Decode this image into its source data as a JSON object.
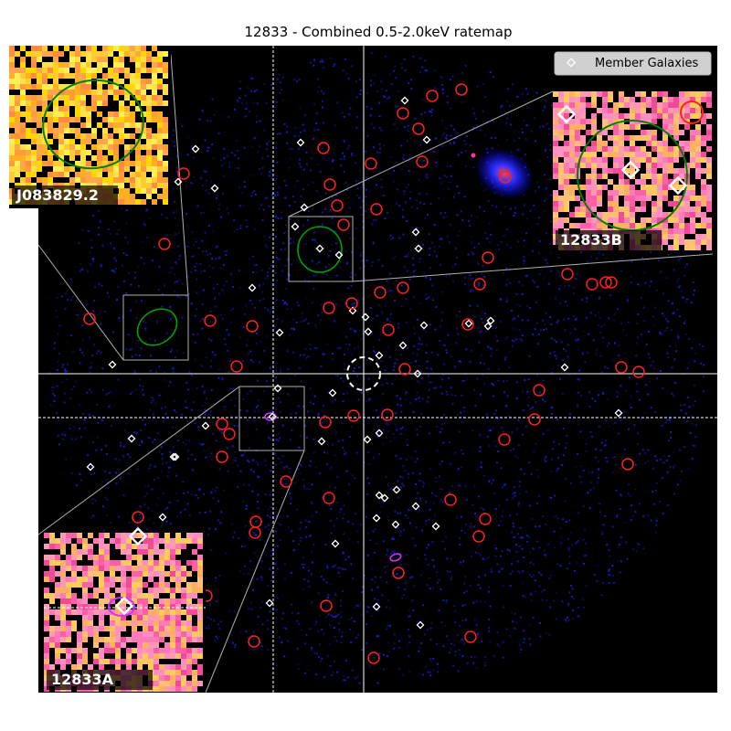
{
  "chart_data": {
    "type": "scatter",
    "title": "12833 - Combined 0.5-2.0keV ratemap",
    "xlabel": "",
    "ylabel": "",
    "grid": false,
    "legend": {
      "placement": "top-right",
      "entries": [
        "Member Galaxies"
      ]
    },
    "colors": {
      "background": "#000000",
      "photons": "#2222ff",
      "point_source": "#ff2020",
      "member_galaxy": "#ffffff",
      "inset_region": "#00a000",
      "extended_source": "#ff33ff",
      "leader_line": "#bbbbbb"
    },
    "series": [
      {
        "name": "Member Galaxies",
        "marker": "diamond",
        "points": [
          [
            443,
            110
          ],
          [
            214,
            163
          ],
          [
            329,
            156
          ],
          [
            467,
            153
          ],
          [
            195,
            199
          ],
          [
            235,
            206
          ],
          [
            333,
            227
          ],
          [
            323,
            248
          ],
          [
            455,
            254
          ],
          [
            458,
            272
          ],
          [
            350,
            272
          ],
          [
            371,
            279
          ],
          [
            276,
            315
          ],
          [
            386,
            340
          ],
          [
            400,
            347
          ],
          [
            306,
            364
          ],
          [
            403,
            363
          ],
          [
            464,
            356
          ],
          [
            513,
            354
          ],
          [
            537,
            351
          ],
          [
            534,
            357
          ],
          [
            441,
            378
          ],
          [
            415,
            389
          ],
          [
            123,
            399
          ],
          [
            457,
            409
          ],
          [
            618,
            402
          ],
          [
            304,
            425
          ],
          [
            364,
            430
          ],
          [
            298,
            456
          ],
          [
            225,
            466
          ],
          [
            415,
            474
          ],
          [
            402,
            481
          ],
          [
            352,
            483
          ],
          [
            144,
            480
          ],
          [
            190,
            500
          ],
          [
            192,
            500
          ],
          [
            99,
            511
          ],
          [
            434,
            536
          ],
          [
            415,
            542
          ],
          [
            421,
            545
          ],
          [
            455,
            554
          ],
          [
            178,
            566
          ],
          [
            412,
            567
          ],
          [
            433,
            574
          ],
          [
            477,
            576
          ],
          [
            367,
            595
          ],
          [
            677,
            452
          ],
          [
            295,
            660
          ],
          [
            412,
            664
          ],
          [
            460,
            684
          ]
        ]
      },
      {
        "name": "",
        "marker": "circle",
        "points": [
          [
            473,
            105
          ],
          [
            505,
            98
          ],
          [
            441,
            124
          ],
          [
            458,
            141
          ],
          [
            354,
            162
          ],
          [
            406,
            179
          ],
          [
            462,
            177
          ],
          [
            201,
            190
          ],
          [
            361,
            202
          ],
          [
            369,
            225
          ],
          [
            412,
            229
          ],
          [
            376,
            246
          ],
          [
            180,
            267
          ],
          [
            534,
            282
          ],
          [
            621,
            300
          ],
          [
            648,
            311
          ],
          [
            663,
            309
          ],
          [
            669,
            309
          ],
          [
            416,
            320
          ],
          [
            441,
            315
          ],
          [
            525,
            311
          ],
          [
            360,
            337
          ],
          [
            385,
            332
          ],
          [
            98,
            349
          ],
          [
            230,
            351
          ],
          [
            276,
            357
          ],
          [
            425,
            361
          ],
          [
            512,
            355
          ],
          [
            259,
            401
          ],
          [
            443,
            404
          ],
          [
            680,
            402
          ],
          [
            699,
            407
          ],
          [
            590,
            427
          ],
          [
            243,
            464
          ],
          [
            251,
            475
          ],
          [
            356,
            462
          ],
          [
            387,
            455
          ],
          [
            424,
            454
          ],
          [
            585,
            459
          ],
          [
            552,
            481
          ],
          [
            243,
            500
          ],
          [
            687,
            508
          ],
          [
            313,
            527
          ],
          [
            360,
            545
          ],
          [
            493,
            547
          ],
          [
            531,
            568
          ],
          [
            151,
            566
          ],
          [
            280,
            571
          ],
          [
            279,
            583
          ],
          [
            524,
            587
          ],
          [
            436,
            627
          ],
          [
            226,
            652
          ],
          [
            357,
            663
          ],
          [
            278,
            702
          ],
          [
            409,
            720
          ],
          [
            515,
            697
          ],
          [
            553,
            194
          ],
          [
            757,
            123
          ]
        ]
      }
    ],
    "annotations": [
      "J083829.2",
      "12833B",
      "12833A"
    ]
  }
}
